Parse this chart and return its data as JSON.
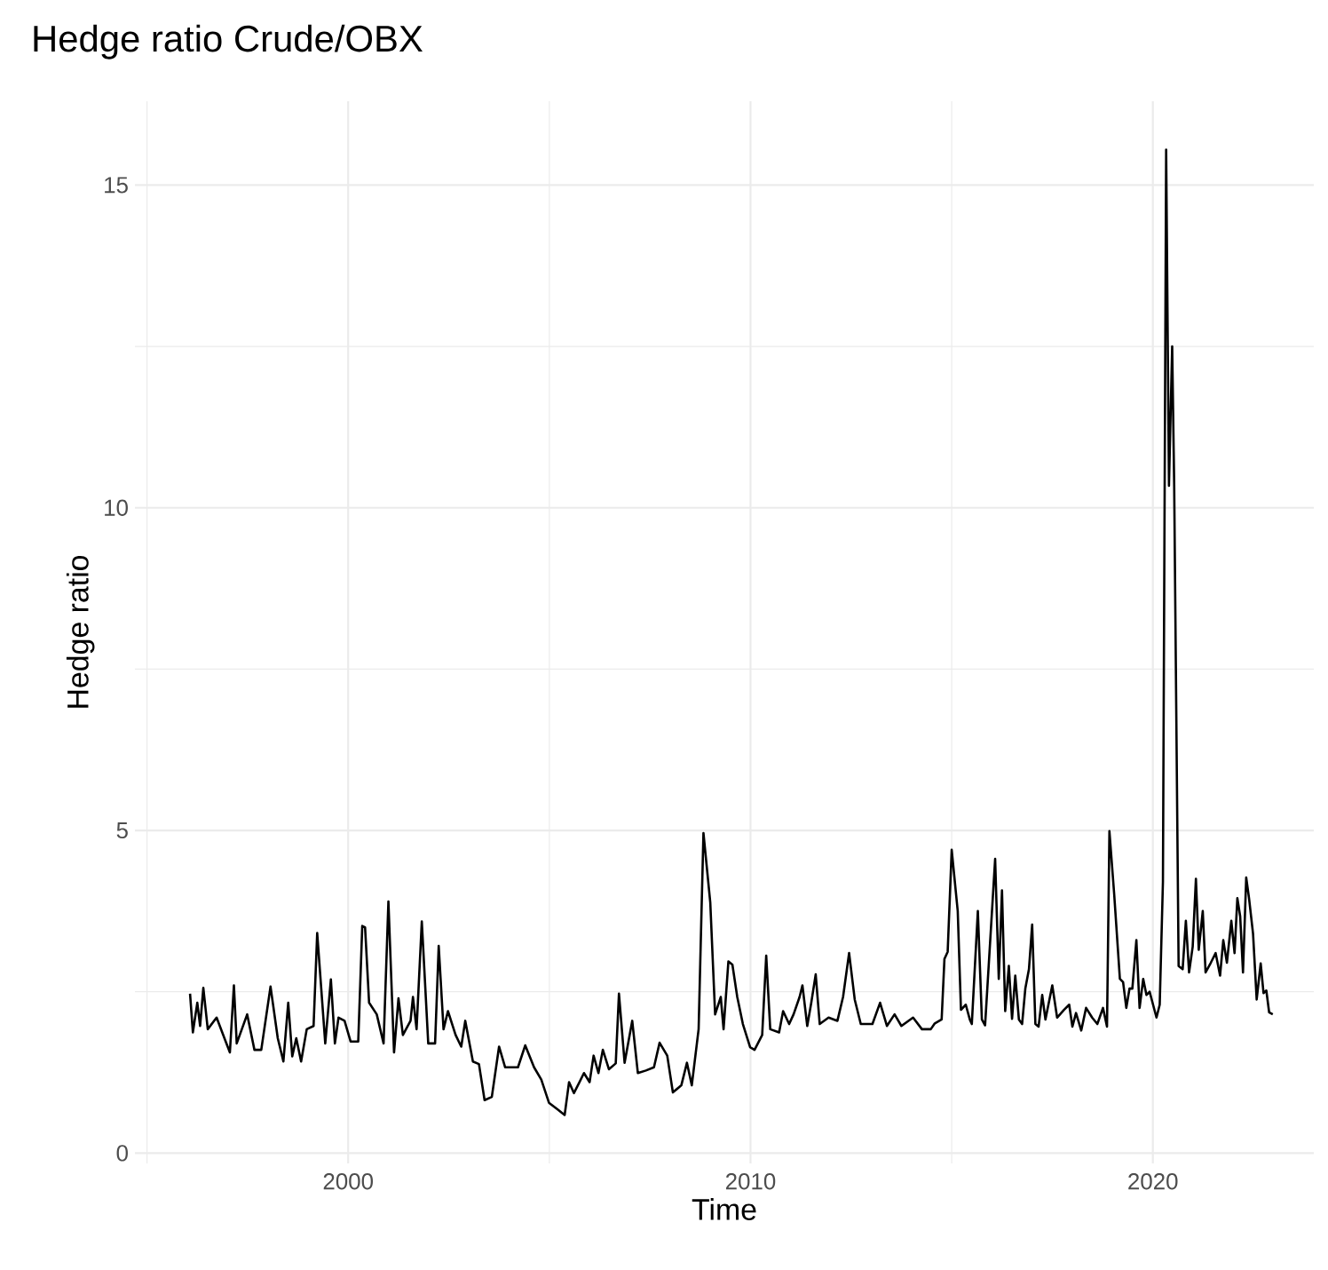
{
  "chart_data": {
    "type": "line",
    "title": "Hedge ratio Crude/OBX",
    "xlabel": "Time",
    "ylabel": "Hedge ratio",
    "x": [
      1996.07,
      1996.14,
      1996.25,
      1996.32,
      1996.4,
      1996.51,
      1996.73,
      1996.87,
      1997.06,
      1997.16,
      1997.23,
      1997.49,
      1997.67,
      1997.84,
      1998.07,
      1998.25,
      1998.39,
      1998.51,
      1998.61,
      1998.71,
      1998.83,
      1998.97,
      1999.14,
      1999.23,
      1999.43,
      1999.57,
      1999.67,
      1999.76,
      1999.91,
      2000.06,
      2000.25,
      2000.35,
      2000.42,
      2000.52,
      2000.71,
      2000.88,
      2001.0,
      2001.14,
      2001.25,
      2001.36,
      2001.55,
      2001.61,
      2001.7,
      2001.83,
      2001.99,
      2002.16,
      2002.25,
      2002.37,
      2002.48,
      2002.67,
      2002.81,
      2002.91,
      2003.1,
      2003.25,
      2003.39,
      2003.57,
      2003.75,
      2003.9,
      2004.22,
      2004.4,
      2004.62,
      2004.8,
      2004.99,
      2005.2,
      2005.38,
      2005.49,
      2005.61,
      2005.75,
      2005.86,
      2006.0,
      2006.1,
      2006.22,
      2006.33,
      2006.48,
      2006.65,
      2006.73,
      2006.87,
      2007.06,
      2007.2,
      2007.4,
      2007.6,
      2007.74,
      2007.93,
      2008.07,
      2008.28,
      2008.42,
      2008.54,
      2008.71,
      2008.83,
      2009.0,
      2009.12,
      2009.26,
      2009.33,
      2009.45,
      2009.55,
      2009.67,
      2009.81,
      2009.99,
      2010.1,
      2010.29,
      2010.39,
      2010.49,
      2010.71,
      2010.81,
      2010.96,
      2011.07,
      2011.22,
      2011.29,
      2011.41,
      2011.51,
      2011.62,
      2011.72,
      2011.94,
      2012.16,
      2012.3,
      2012.45,
      2012.59,
      2012.74,
      2013.03,
      2013.22,
      2013.39,
      2013.58,
      2013.75,
      2014.04,
      2014.26,
      2014.48,
      2014.58,
      2014.75,
      2014.82,
      2014.9,
      2015.0,
      2015.15,
      2015.23,
      2015.35,
      2015.45,
      2015.5,
      2015.65,
      2015.75,
      2015.83,
      2016.08,
      2016.17,
      2016.25,
      2016.33,
      2016.42,
      2016.5,
      2016.58,
      2016.67,
      2016.75,
      2016.83,
      2016.92,
      2017.0,
      2017.08,
      2017.16,
      2017.25,
      2017.33,
      2017.5,
      2017.62,
      2017.79,
      2017.92,
      2018.0,
      2018.09,
      2018.22,
      2018.34,
      2018.49,
      2018.62,
      2018.76,
      2018.86,
      2018.92,
      2019.04,
      2019.18,
      2019.26,
      2019.34,
      2019.42,
      2019.49,
      2019.59,
      2019.67,
      2019.76,
      2019.84,
      2019.92,
      2020.09,
      2020.17,
      2020.25,
      2020.33,
      2020.4,
      2020.48,
      2020.53,
      2020.64,
      2020.74,
      2020.82,
      2020.9,
      2020.99,
      2021.07,
      2021.14,
      2021.24,
      2021.31,
      2021.44,
      2021.56,
      2021.67,
      2021.75,
      2021.84,
      2021.95,
      2022.03,
      2022.1,
      2022.17,
      2022.24,
      2022.32,
      2022.39,
      2022.49,
      2022.58,
      2022.68,
      2022.75,
      2022.82,
      2022.89,
      2022.98
    ],
    "series": [
      {
        "color": "#000000",
        "values": [
          2.47,
          1.87,
          2.33,
          1.97,
          2.56,
          1.92,
          2.1,
          1.87,
          1.56,
          2.6,
          1.7,
          2.15,
          1.6,
          1.6,
          2.58,
          1.78,
          1.42,
          2.33,
          1.5,
          1.78,
          1.42,
          1.92,
          1.97,
          3.41,
          1.7,
          2.69,
          1.7,
          2.1,
          2.05,
          1.73,
          1.73,
          3.52,
          3.5,
          2.33,
          2.15,
          1.7,
          3.9,
          1.56,
          2.4,
          1.83,
          2.05,
          2.42,
          1.92,
          3.59,
          1.7,
          1.7,
          3.21,
          1.92,
          2.2,
          1.83,
          1.65,
          2.05,
          1.42,
          1.38,
          0.82,
          0.87,
          1.65,
          1.33,
          1.33,
          1.67,
          1.33,
          1.14,
          0.78,
          0.68,
          0.59,
          1.1,
          0.93,
          1.1,
          1.24,
          1.1,
          1.51,
          1.24,
          1.6,
          1.3,
          1.39,
          2.47,
          1.4,
          2.05,
          1.24,
          1.28,
          1.33,
          1.71,
          1.51,
          0.94,
          1.05,
          1.4,
          1.05,
          1.92,
          4.96,
          3.88,
          2.15,
          2.42,
          1.92,
          2.97,
          2.92,
          2.42,
          2.0,
          1.64,
          1.6,
          1.83,
          3.06,
          1.92,
          1.87,
          2.2,
          2.0,
          2.15,
          2.42,
          2.6,
          1.97,
          2.33,
          2.77,
          2.0,
          2.1,
          2.05,
          2.42,
          3.1,
          2.38,
          2.0,
          2.0,
          2.33,
          1.97,
          2.15,
          1.97,
          2.1,
          1.92,
          1.92,
          2.01,
          2.07,
          3.01,
          3.12,
          4.7,
          3.75,
          2.22,
          2.3,
          2.07,
          2.0,
          3.75,
          2.07,
          1.98,
          4.56,
          2.7,
          4.07,
          2.2,
          2.9,
          2.08,
          2.75,
          2.07,
          2.0,
          2.55,
          2.85,
          3.54,
          2.0,
          1.96,
          2.45,
          2.07,
          2.6,
          2.1,
          2.22,
          2.3,
          1.96,
          2.17,
          1.9,
          2.25,
          2.1,
          2.0,
          2.25,
          1.96,
          4.99,
          4.0,
          2.7,
          2.65,
          2.25,
          2.55,
          2.55,
          3.3,
          2.25,
          2.7,
          2.45,
          2.5,
          2.1,
          2.3,
          4.2,
          15.55,
          10.34,
          12.5,
          10.34,
          2.9,
          2.85,
          3.6,
          2.8,
          3.2,
          4.25,
          3.15,
          3.75,
          2.8,
          2.95,
          3.1,
          2.75,
          3.3,
          2.95,
          3.6,
          3.1,
          3.95,
          3.67,
          2.8,
          4.27,
          3.95,
          3.4,
          2.38,
          2.94,
          2.48,
          2.52,
          2.18,
          2.15
        ]
      }
    ],
    "xlim": [
      1994.7,
      2024.0
    ],
    "ylim": [
      -0.16,
      16.3
    ],
    "xticks": [
      {
        "value": 1995,
        "label": null
      },
      2000,
      {
        "value": 2005,
        "label": null
      },
      2010,
      {
        "value": 2015,
        "label": null
      },
      2020
    ],
    "yticks": [
      0,
      {
        "value": 2.5,
        "label": null
      },
      5,
      {
        "value": 7.5,
        "label": null
      },
      10,
      {
        "value": 12.5,
        "label": null
      },
      15
    ],
    "grid": true,
    "line_style": "solid"
  }
}
